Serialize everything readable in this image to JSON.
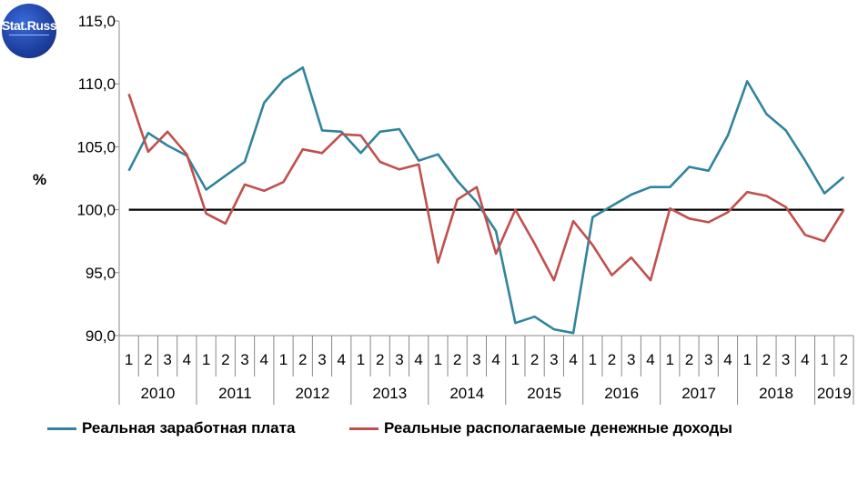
{
  "logo": {
    "text": "Stat.Russ"
  },
  "chart_data": {
    "type": "line",
    "ylabel": "%",
    "ylim": [
      90,
      115
    ],
    "yticks": [
      "90,0",
      "95,0",
      "100,0",
      "105,0",
      "110,0",
      "115,0"
    ],
    "ytick_values": [
      90,
      95,
      100,
      105,
      110,
      115
    ],
    "reference_line": 100,
    "grid": false,
    "legend_position": "bottom",
    "quarters": [
      "1",
      "2",
      "3",
      "4",
      "1",
      "2",
      "3",
      "4",
      "1",
      "2",
      "3",
      "4",
      "1",
      "2",
      "3",
      "4",
      "1",
      "2",
      "3",
      "4",
      "1",
      "2",
      "3",
      "4",
      "1",
      "2",
      "3",
      "4",
      "1",
      "2",
      "3",
      "4",
      "1",
      "2",
      "3",
      "4",
      "1",
      "2"
    ],
    "years": [
      {
        "label": "2010",
        "quarters": 4
      },
      {
        "label": "2011",
        "quarters": 4
      },
      {
        "label": "2012",
        "quarters": 4
      },
      {
        "label": "2013",
        "quarters": 4
      },
      {
        "label": "2014",
        "quarters": 4
      },
      {
        "label": "2015",
        "quarters": 4
      },
      {
        "label": "2016",
        "quarters": 4
      },
      {
        "label": "2017",
        "quarters": 4
      },
      {
        "label": "2018",
        "quarters": 4
      },
      {
        "label": "2019",
        "quarters": 2
      }
    ],
    "series": [
      {
        "name": "Реальная заработная плата",
        "color": "#31849b",
        "values": [
          103.1,
          106.1,
          105.1,
          104.3,
          101.6,
          102.7,
          103.8,
          108.5,
          110.3,
          111.3,
          106.3,
          106.2,
          104.5,
          106.2,
          106.4,
          103.9,
          104.4,
          102.3,
          100.6,
          98.3,
          91.0,
          91.5,
          90.5,
          90.2,
          99.4,
          100.3,
          101.2,
          101.8,
          101.8,
          103.4,
          103.1,
          105.9,
          110.2,
          107.6,
          106.3,
          103.9,
          101.3,
          102.6
        ]
      },
      {
        "name": "Реальные располагаемые денежные доходы",
        "color": "#c0504d",
        "values": [
          109.2,
          104.6,
          106.2,
          104.4,
          99.7,
          98.9,
          102.0,
          101.5,
          102.2,
          104.8,
          104.5,
          106.0,
          105.9,
          103.8,
          103.2,
          103.6,
          95.8,
          100.8,
          101.8,
          96.5,
          100.0,
          97.3,
          94.4,
          99.1,
          97.2,
          94.8,
          96.2,
          94.4,
          100.1,
          99.3,
          99.0,
          99.8,
          101.4,
          101.1,
          100.2,
          98.0,
          97.5,
          100.0
        ]
      }
    ]
  }
}
